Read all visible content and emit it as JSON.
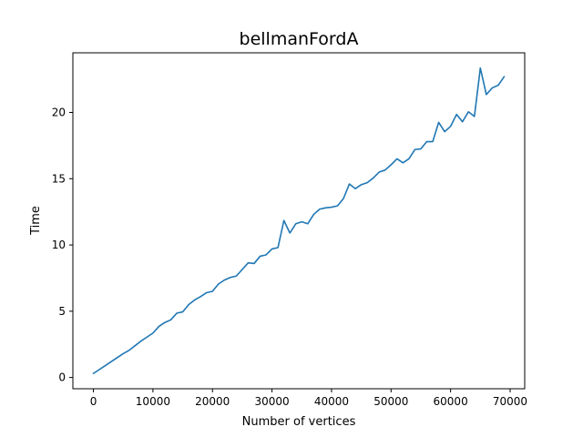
{
  "chart_data": {
    "type": "line",
    "title": "bellmanFordA",
    "xlabel": "Number of vertices",
    "ylabel": "Time",
    "xlim": [
      -3450,
      72450
    ],
    "ylim": [
      -0.85,
      24.5
    ],
    "xticks": [
      0,
      10000,
      20000,
      30000,
      40000,
      50000,
      60000,
      70000
    ],
    "yticks": [
      0,
      5,
      10,
      15,
      20
    ],
    "grid": false,
    "series": [
      {
        "color": "#1f77b4",
        "x": [
          0,
          1000,
          2000,
          3000,
          4000,
          5000,
          6000,
          7000,
          8000,
          9000,
          10000,
          11000,
          12000,
          13000,
          14000,
          15000,
          16000,
          17000,
          18000,
          19000,
          20000,
          21000,
          22000,
          23000,
          24000,
          25000,
          26000,
          27000,
          28000,
          29000,
          30000,
          31000,
          32000,
          33000,
          34000,
          35000,
          36000,
          37000,
          38000,
          39000,
          40000,
          41000,
          42000,
          43000,
          44000,
          45000,
          46000,
          47000,
          48000,
          49000,
          50000,
          51000,
          52000,
          53000,
          54000,
          55000,
          56000,
          57000,
          58000,
          59000,
          60000,
          61000,
          62000,
          63000,
          64000,
          65000,
          66000,
          67000,
          68000,
          69000
        ],
        "y": [
          0.3,
          0.6,
          0.9,
          1.2,
          1.5,
          1.8,
          2.05,
          2.4,
          2.75,
          3.05,
          3.35,
          3.85,
          4.15,
          4.35,
          4.85,
          4.95,
          5.5,
          5.85,
          6.1,
          6.4,
          6.5,
          7.05,
          7.35,
          7.55,
          7.65,
          8.15,
          8.65,
          8.6,
          9.15,
          9.25,
          9.7,
          9.8,
          11.85,
          10.9,
          11.6,
          11.75,
          11.6,
          12.3,
          12.7,
          12.8,
          12.85,
          12.95,
          13.5,
          14.6,
          14.25,
          14.55,
          14.7,
          15.05,
          15.5,
          15.65,
          16.05,
          16.5,
          16.2,
          16.5,
          17.2,
          17.25,
          17.8,
          17.8,
          19.25,
          18.55,
          18.95,
          19.85,
          19.3,
          20.05,
          19.7,
          23.35,
          21.35,
          21.85,
          22.05,
          22.7
        ]
      }
    ]
  }
}
